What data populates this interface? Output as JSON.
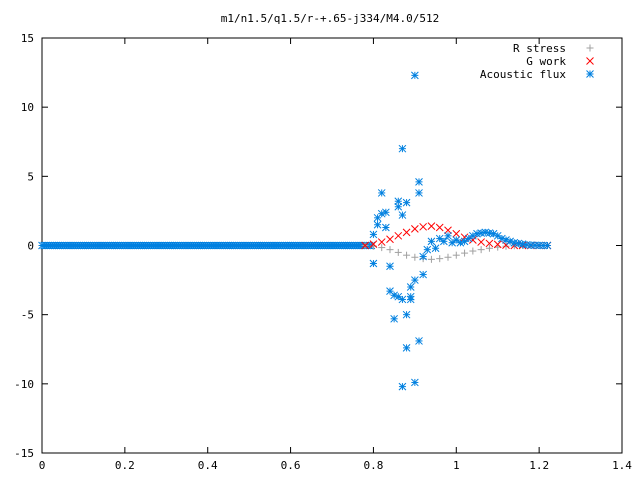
{
  "chart_data": {
    "type": "scatter",
    "title": "m1/n1.5/q1.5/r-+.65-j334/M4.0/512",
    "xlabel": "",
    "ylabel": "",
    "xlim": [
      0,
      1.4
    ],
    "ylim": [
      -15,
      15
    ],
    "x_ticks": [
      0,
      0.2,
      0.4,
      0.6,
      0.8,
      1,
      1.2,
      1.4
    ],
    "x_tick_labels": [
      "0",
      "0.2",
      "0.4",
      "0.6",
      "0.8",
      "1",
      "1.2",
      "1.4"
    ],
    "y_ticks": [
      -15,
      -10,
      -5,
      0,
      5,
      10,
      15
    ],
    "y_tick_labels": [
      "-15",
      "-10",
      "-5",
      "0",
      "5",
      "10",
      "15"
    ],
    "grid": false,
    "legend_position": "top-right",
    "series": [
      {
        "name": "R stress",
        "marker": "plus",
        "color": "#a0a0a0",
        "points": [
          [
            0.78,
            0
          ],
          [
            0.8,
            -0.05
          ],
          [
            0.82,
            -0.15
          ],
          [
            0.84,
            -0.3
          ],
          [
            0.86,
            -0.5
          ],
          [
            0.88,
            -0.7
          ],
          [
            0.9,
            -0.85
          ],
          [
            0.92,
            -0.95
          ],
          [
            0.94,
            -1.0
          ],
          [
            0.96,
            -0.95
          ],
          [
            0.98,
            -0.85
          ],
          [
            1.0,
            -0.7
          ],
          [
            1.02,
            -0.55
          ],
          [
            1.04,
            -0.4
          ],
          [
            1.06,
            -0.3
          ],
          [
            1.08,
            -0.2
          ],
          [
            1.1,
            -0.12
          ],
          [
            1.12,
            -0.05
          ],
          [
            1.14,
            -0.02
          ],
          [
            1.16,
            0
          ],
          [
            1.18,
            0
          ],
          [
            1.2,
            0
          ],
          [
            1.22,
            0
          ]
        ]
      },
      {
        "name": "G work",
        "marker": "cross",
        "color": "#ff0000",
        "points": [
          [
            0.78,
            0
          ],
          [
            0.8,
            0.1
          ],
          [
            0.82,
            0.25
          ],
          [
            0.84,
            0.45
          ],
          [
            0.86,
            0.7
          ],
          [
            0.88,
            0.95
          ],
          [
            0.9,
            1.2
          ],
          [
            0.92,
            1.35
          ],
          [
            0.94,
            1.4
          ],
          [
            0.96,
            1.3
          ],
          [
            0.98,
            1.1
          ],
          [
            1.0,
            0.85
          ],
          [
            1.02,
            0.6
          ],
          [
            1.04,
            0.4
          ],
          [
            1.06,
            0.25
          ],
          [
            1.08,
            0.15
          ],
          [
            1.1,
            0.08
          ],
          [
            1.12,
            0.03
          ],
          [
            1.14,
            0
          ],
          [
            1.16,
            0
          ],
          [
            1.18,
            0
          ],
          [
            1.2,
            0
          ],
          [
            1.22,
            0
          ]
        ]
      },
      {
        "name": "Acoustic flux",
        "marker": "star",
        "color": "#0080e0",
        "points": [
          [
            0.8,
            -1.3
          ],
          [
            0.8,
            0.8
          ],
          [
            0.81,
            2.0
          ],
          [
            0.81,
            1.5
          ],
          [
            0.82,
            2.3
          ],
          [
            0.82,
            3.8
          ],
          [
            0.83,
            1.3
          ],
          [
            0.83,
            2.4
          ],
          [
            0.84,
            -1.5
          ],
          [
            0.84,
            -3.3
          ],
          [
            0.85,
            -5.3
          ],
          [
            0.85,
            -3.6
          ],
          [
            0.86,
            -3.7
          ],
          [
            0.86,
            3.2
          ],
          [
            0.86,
            2.8
          ],
          [
            0.87,
            2.2
          ],
          [
            0.87,
            -3.9
          ],
          [
            0.87,
            7.0
          ],
          [
            0.87,
            -10.2
          ],
          [
            0.88,
            -5.0
          ],
          [
            0.88,
            -7.4
          ],
          [
            0.88,
            3.1
          ],
          [
            0.89,
            -3.9
          ],
          [
            0.89,
            -3.7
          ],
          [
            0.89,
            -3.0
          ],
          [
            0.9,
            -9.9
          ],
          [
            0.9,
            12.3
          ],
          [
            0.9,
            -2.5
          ],
          [
            0.91,
            4.6
          ],
          [
            0.91,
            3.8
          ],
          [
            0.91,
            -6.9
          ],
          [
            0.92,
            -2.1
          ],
          [
            0.92,
            -0.8
          ],
          [
            0.93,
            -0.3
          ],
          [
            0.94,
            0.3
          ],
          [
            0.95,
            -0.2
          ],
          [
            0.96,
            0.5
          ],
          [
            0.97,
            0.3
          ],
          [
            0.98,
            0.7
          ],
          [
            0.99,
            0.2
          ],
          [
            1.0,
            0.4
          ],
          [
            1.01,
            0.2
          ],
          [
            1.02,
            0.3
          ],
          [
            1.03,
            0.5
          ],
          [
            1.04,
            0.7
          ],
          [
            1.05,
            0.85
          ],
          [
            1.06,
            0.9
          ],
          [
            1.07,
            0.95
          ],
          [
            1.08,
            0.9
          ],
          [
            1.09,
            0.85
          ],
          [
            1.1,
            0.7
          ],
          [
            1.11,
            0.5
          ],
          [
            1.12,
            0.4
          ],
          [
            1.13,
            0.3
          ],
          [
            1.14,
            0.2
          ],
          [
            1.15,
            0.15
          ],
          [
            1.16,
            0.1
          ],
          [
            1.17,
            0.05
          ],
          [
            1.18,
            0.03
          ],
          [
            1.19,
            0.02
          ],
          [
            1.2,
            0.01
          ],
          [
            1.21,
            0
          ],
          [
            1.22,
            0
          ]
        ]
      }
    ]
  }
}
